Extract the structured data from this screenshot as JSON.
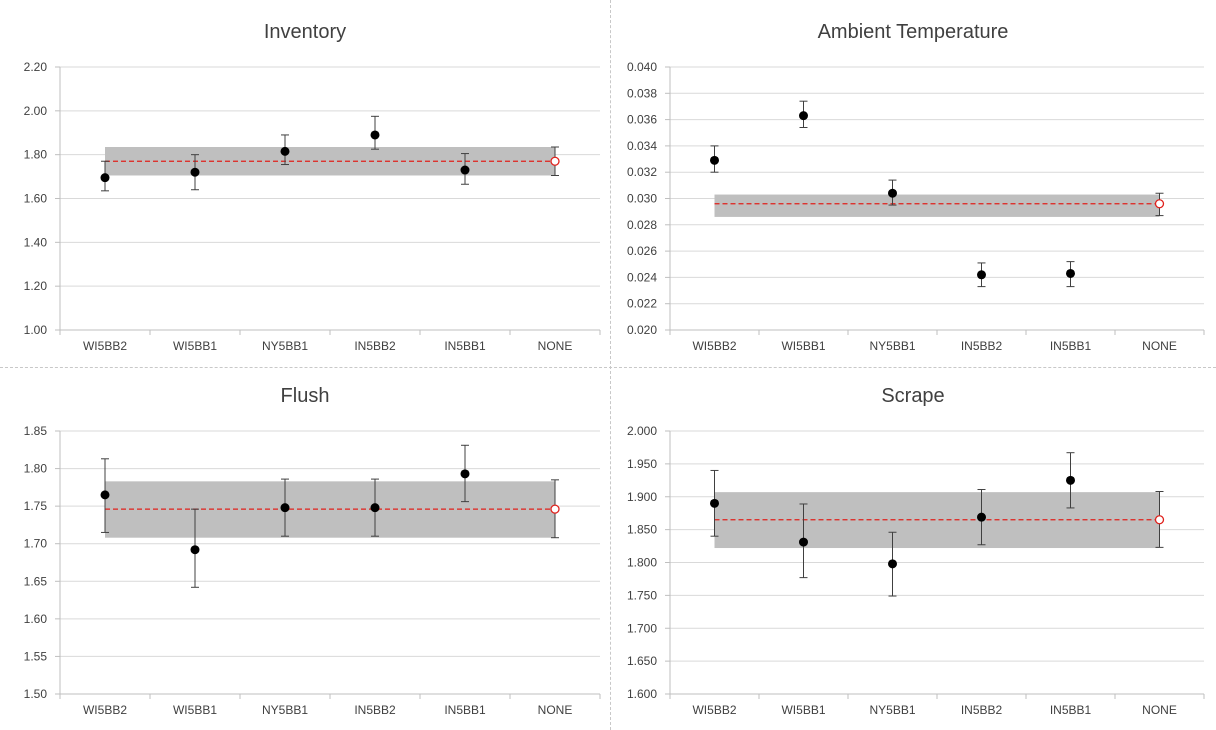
{
  "chart_data": [
    {
      "type": "scatter",
      "title": "Inventory",
      "categories": [
        "WI5BB2",
        "WI5BB1",
        "NY5BB1",
        "IN5BB2",
        "IN5BB1",
        "NONE"
      ],
      "ylim": [
        1.0,
        2.2
      ],
      "yticks": [
        "1.00",
        "1.20",
        "1.40",
        "1.60",
        "1.80",
        "2.00",
        "2.20"
      ],
      "series": [
        {
          "values": [
            1.695,
            1.72,
            1.815,
            1.89,
            1.73,
            null
          ],
          "err_low": [
            1.635,
            1.64,
            1.755,
            1.825,
            1.665,
            null
          ],
          "err_high": [
            1.77,
            1.8,
            1.89,
            1.975,
            1.805,
            null
          ]
        }
      ],
      "reference": {
        "value": 1.77,
        "band": [
          1.705,
          1.835
        ],
        "err_low": 1.705,
        "err_high": 1.835
      },
      "grid": true,
      "legend": "none"
    },
    {
      "type": "scatter",
      "title": "Ambient Temperature",
      "categories": [
        "WI5BB2",
        "WI5BB1",
        "NY5BB1",
        "IN5BB2",
        "IN5BB1",
        "NONE"
      ],
      "ylim": [
        0.02,
        0.04
      ],
      "yticks": [
        "0.020",
        "0.022",
        "0.024",
        "0.026",
        "0.028",
        "0.030",
        "0.032",
        "0.034",
        "0.036",
        "0.038",
        "0.040"
      ],
      "series": [
        {
          "values": [
            0.0329,
            0.0363,
            0.0304,
            0.0242,
            0.0243,
            null
          ],
          "err_low": [
            0.032,
            0.0354,
            0.0295,
            0.0233,
            0.0233,
            null
          ],
          "err_high": [
            0.034,
            0.0374,
            0.0314,
            0.0251,
            0.0252,
            null
          ]
        }
      ],
      "reference": {
        "value": 0.0296,
        "band": [
          0.0286,
          0.0303
        ],
        "err_low": 0.0287,
        "err_high": 0.0304
      },
      "grid": true,
      "legend": "none"
    },
    {
      "type": "scatter",
      "title": "Flush",
      "categories": [
        "WI5BB2",
        "WI5BB1",
        "NY5BB1",
        "IN5BB2",
        "IN5BB1",
        "NONE"
      ],
      "ylim": [
        1.5,
        1.85
      ],
      "yticks": [
        "1.50",
        "1.55",
        "1.60",
        "1.65",
        "1.70",
        "1.75",
        "1.80",
        "1.85"
      ],
      "series": [
        {
          "values": [
            1.765,
            1.692,
            1.748,
            1.748,
            1.793,
            null
          ],
          "err_low": [
            1.715,
            1.642,
            1.71,
            1.71,
            1.756,
            null
          ],
          "err_high": [
            1.813,
            1.746,
            1.786,
            1.786,
            1.831,
            null
          ]
        }
      ],
      "reference": {
        "value": 1.746,
        "band": [
          1.708,
          1.783
        ],
        "err_low": 1.708,
        "err_high": 1.785
      },
      "grid": true,
      "legend": "none"
    },
    {
      "type": "scatter",
      "title": "Scrape",
      "categories": [
        "WI5BB2",
        "WI5BB1",
        "NY5BB1",
        "IN5BB2",
        "IN5BB1",
        "NONE"
      ],
      "ylim": [
        1.6,
        2.0
      ],
      "yticks": [
        "1.600",
        "1.650",
        "1.700",
        "1.750",
        "1.800",
        "1.850",
        "1.900",
        "1.950",
        "2.000"
      ],
      "series": [
        {
          "values": [
            1.89,
            1.831,
            1.798,
            1.869,
            1.925,
            null
          ],
          "err_low": [
            1.84,
            1.777,
            1.749,
            1.827,
            1.883,
            null
          ],
          "err_high": [
            1.94,
            1.889,
            1.846,
            1.911,
            1.967,
            null
          ]
        }
      ],
      "reference": {
        "value": 1.865,
        "band": [
          1.822,
          1.907
        ],
        "err_low": 1.823,
        "err_high": 1.908
      },
      "grid": true,
      "legend": "none"
    }
  ],
  "colors": {
    "marker": "#000000",
    "errorbar": "#404040",
    "band": "#bfbfbf",
    "reference_line": "#e0201b",
    "gridline": "#d9d9d9",
    "axis": "#bfbfbf",
    "text": "#404040"
  }
}
